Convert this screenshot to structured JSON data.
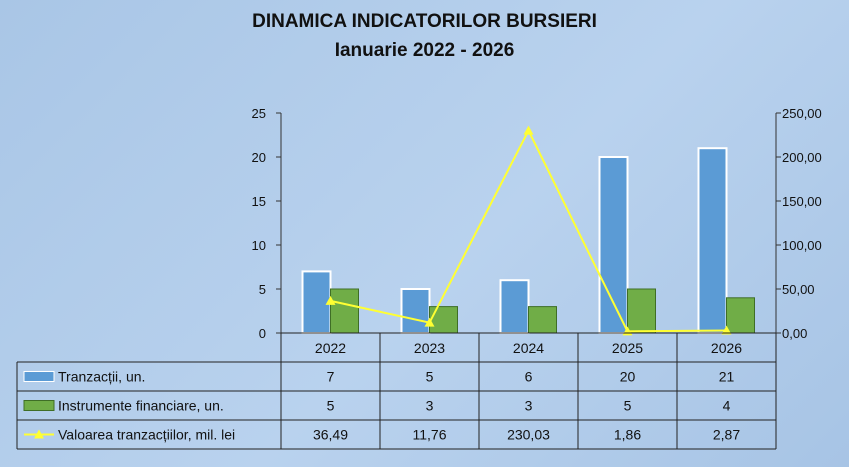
{
  "chart_data": {
    "type": "bar",
    "title": "DINAMICA INDICATORILOR BURSIERI",
    "subtitle": "Ianuarie 2022 - 2026",
    "categories": [
      "2022",
      "2023",
      "2024",
      "2025",
      "2026"
    ],
    "left_axis": {
      "ylim": [
        0,
        25
      ],
      "ticks": [
        "0",
        "5",
        "10",
        "15",
        "20",
        "25"
      ]
    },
    "right_axis": {
      "ylim": [
        0,
        250
      ],
      "ticks": [
        "0,00",
        "50,00",
        "100,00",
        "150,00",
        "200,00",
        "250,00"
      ]
    },
    "series": [
      {
        "name": "Tranzacții, un.",
        "type": "bar",
        "axis": "left",
        "color": "#5b9bd5",
        "values": [
          7,
          5,
          6,
          20,
          21
        ],
        "labels": [
          "7",
          "5",
          "6",
          "20",
          "21"
        ]
      },
      {
        "name": "Instrumente financiare, un.",
        "type": "bar",
        "axis": "left",
        "color": "#70ad47",
        "values": [
          5,
          3,
          3,
          5,
          4
        ],
        "labels": [
          "5",
          "3",
          "3",
          "5",
          "4"
        ]
      },
      {
        "name": "Valoarea tranzacțiilor, mil. lei",
        "type": "line",
        "axis": "right",
        "color": "#ffff33",
        "values": [
          36.49,
          11.76,
          230.03,
          1.86,
          2.87
        ],
        "labels": [
          "36,49",
          "11,76",
          "230,03",
          "1,86",
          "2,87"
        ]
      }
    ],
    "legend": "data-table"
  }
}
